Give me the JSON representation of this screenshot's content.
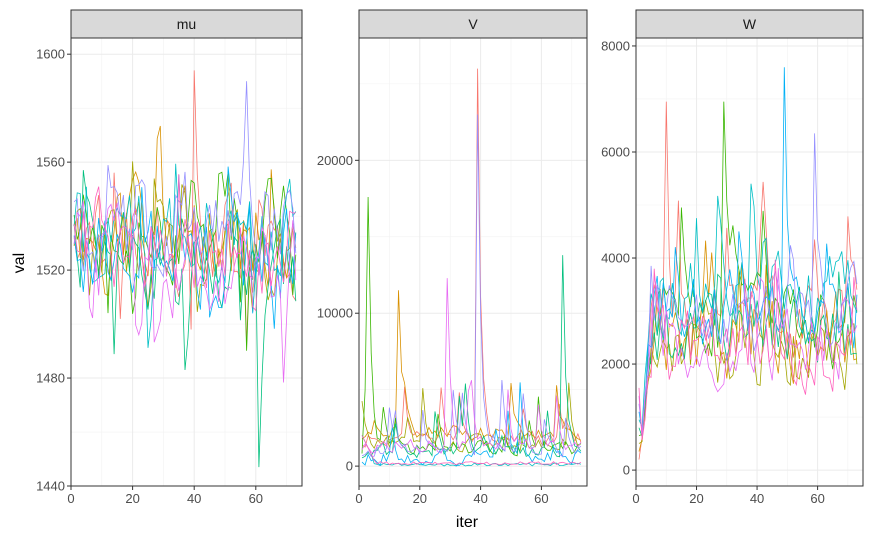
{
  "chart_data": {
    "type": "line",
    "facet_variable_panels": [
      "mu",
      "V",
      "W"
    ],
    "xlabel": "iter",
    "ylabel": "val",
    "grid": true,
    "legend": "none",
    "series_count": 10,
    "series_colors": [
      "#F8766D",
      "#D89000",
      "#A3A500",
      "#39B600",
      "#00BF7D",
      "#00BFC4",
      "#00B0F6",
      "#9590FF",
      "#E76BF3",
      "#FF62BC"
    ],
    "panels": [
      {
        "name": "mu",
        "xlim": [
          0,
          75
        ],
        "ylim": [
          1440,
          1606
        ],
        "xticks": [
          0,
          20,
          40,
          60
        ],
        "yticks": [
          1440,
          1480,
          1520,
          1560,
          1600
        ],
        "iterations": [
          1,
          73
        ],
        "series_center": [
          1528,
          1532,
          1524,
          1535,
          1520,
          1530,
          1526,
          1538,
          1522,
          1529
        ],
        "range_min": 1447,
        "range_max": 1594,
        "peaks": [
          {
            "x": 40,
            "y": 1594
          },
          {
            "x": 57,
            "y": 1590
          },
          {
            "x": 61,
            "y": 1447
          }
        ]
      },
      {
        "name": "V",
        "xlim": [
          0,
          75
        ],
        "ylim": [
          -1300,
          28000
        ],
        "xticks": [
          0,
          20,
          40,
          60
        ],
        "yticks": [
          0,
          10000,
          20000
        ],
        "iterations": [
          1,
          73
        ],
        "series_center": [
          1800,
          2200,
          1500,
          1200,
          900,
          200,
          600,
          1000,
          1400,
          300
        ],
        "range_min": 0,
        "range_max": 26000,
        "peaks": [
          {
            "x": 3,
            "y": 17600
          },
          {
            "x": 39,
            "y": 26000
          },
          {
            "x": 39,
            "y": 23000
          },
          {
            "x": 67,
            "y": 13800
          },
          {
            "x": 13,
            "y": 11500
          },
          {
            "x": 29,
            "y": 12300
          }
        ]
      },
      {
        "name": "W",
        "xlim": [
          0,
          75
        ],
        "ylim": [
          -300,
          8150
        ],
        "xticks": [
          0,
          20,
          40,
          60
        ],
        "yticks": [
          0,
          2000,
          4000,
          6000,
          8000
        ],
        "iterations": [
          1,
          73
        ],
        "series_center": [
          2700,
          2500,
          2300,
          2800,
          2600,
          3300,
          3000,
          2900,
          2400,
          2200
        ],
        "range_min": 0,
        "range_max": 7600,
        "peaks": [
          {
            "x": 49,
            "y": 7600
          },
          {
            "x": 29,
            "y": 6950
          },
          {
            "x": 10,
            "y": 6950
          },
          {
            "x": 59,
            "y": 6350
          }
        ]
      }
    ]
  }
}
